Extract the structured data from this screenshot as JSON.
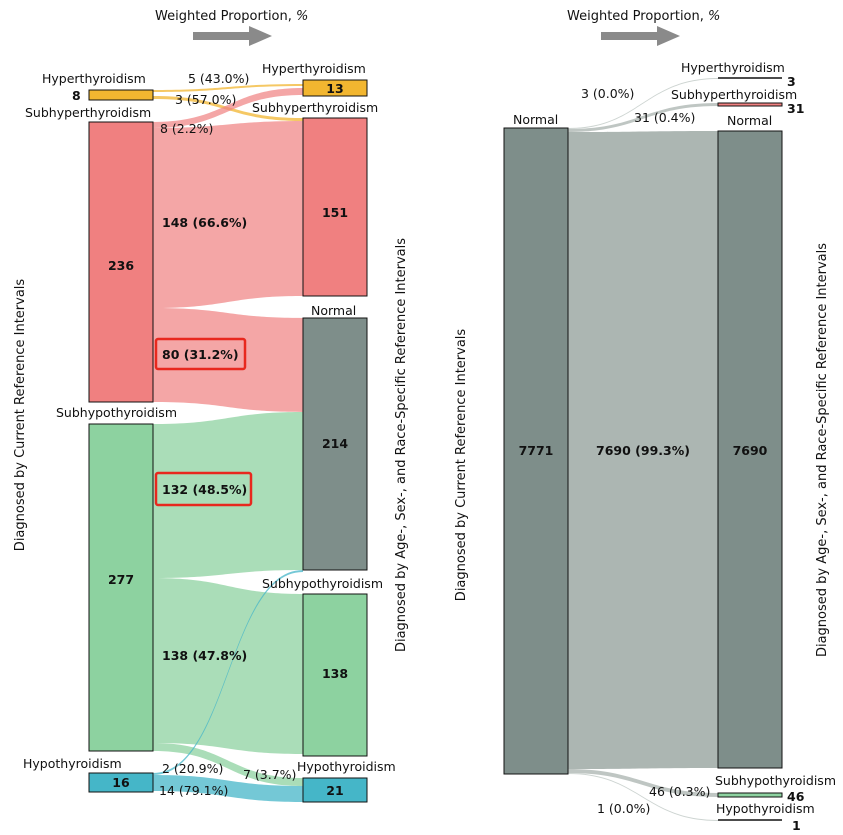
{
  "colors": {
    "hyperthyroidism": "#f2b630",
    "subhyperthyroidism": "#f08080",
    "normal": "#7e8e8a",
    "subhypothyroidism": "#8dd2a0",
    "hypothyroidism": "#45b6c8",
    "highlight": "#e8281e",
    "arrow": "#8a8a8a"
  },
  "left_panel": {
    "header": {
      "title": "Weighted Proportion,",
      "unit": "%"
    },
    "left_axis_label": "Diagnosed by Current Reference Intervals",
    "right_axis_label": "Diagnosed by Age-, Sex-, and Race-Specific Reference Intervals",
    "source_nodes": [
      {
        "category": "Hyperthyroidism",
        "value": "8"
      },
      {
        "category": "Subhyperthyroidism",
        "value": "236"
      },
      {
        "category": "Subhypothyroidism",
        "value": "277"
      },
      {
        "category": "Hypothyroidism",
        "value": "16"
      }
    ],
    "target_nodes": [
      {
        "category": "Hyperthyroidism",
        "value": "13"
      },
      {
        "category": "Subhyperthyroidism",
        "value": "151"
      },
      {
        "category": "Normal",
        "value": "214"
      },
      {
        "category": "Subhypothyroidism",
        "value": "138"
      },
      {
        "category": "Hypothyroidism",
        "value": "21"
      }
    ],
    "flows": [
      {
        "label": "5 (43.0%)"
      },
      {
        "label": "3 (57.0%)"
      },
      {
        "label": "8 (2.2%)"
      },
      {
        "label": "148 (66.6%)"
      },
      {
        "label": "80 (31.2%)"
      },
      {
        "label": "132 (48.5%)"
      },
      {
        "label": "138 (47.8%)"
      },
      {
        "label": "7 (3.7%)"
      },
      {
        "label": "2 (20.9%)"
      },
      {
        "label": "14 (79.1%)"
      }
    ]
  },
  "right_panel": {
    "header": {
      "title": "Weighted Proportion,",
      "unit": "%"
    },
    "left_axis_label": "Diagnosed by Current Reference Intervals",
    "right_axis_label": "Diagnosed by Age-, Sex-, and Race-Specific Reference Intervals",
    "source_node": {
      "category": "Normal",
      "value": "7771"
    },
    "target_nodes": [
      {
        "category": "Hyperthyroidism",
        "value": "3"
      },
      {
        "category": "Subhyperthyroidism",
        "value": "31"
      },
      {
        "category": "Normal",
        "value": "7690"
      },
      {
        "category": "Subhypothyroidism",
        "value": "46"
      },
      {
        "category": "Hypothyroidism",
        "value": "1"
      }
    ],
    "flows": [
      {
        "label": "3 (0.0%)"
      },
      {
        "label": "31 (0.4%)"
      },
      {
        "label": "7690 (99.3%)"
      },
      {
        "label": "46 (0.3%)"
      },
      {
        "label": "1 (0.0%)"
      }
    ]
  }
}
